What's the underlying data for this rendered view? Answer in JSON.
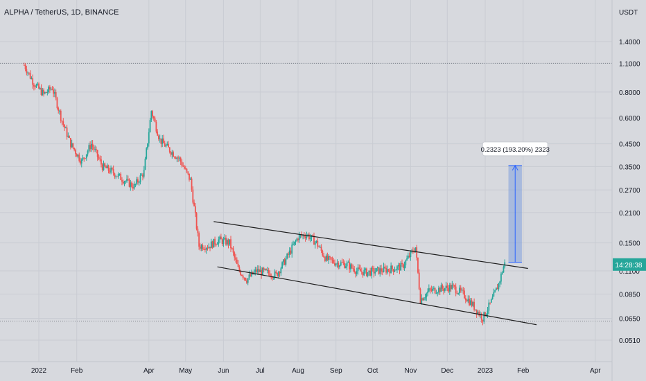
{
  "header": {
    "symbol_title": "ALPHA / TetherUS, 1D, BINANCE",
    "currency": "USDT"
  },
  "colors": {
    "up": "#26a69a",
    "down": "#ef5350",
    "background": "#d7d9de",
    "price_badge": "#26a69a",
    "measure_fill": "#6f95dc",
    "measure_line": "#2962ff"
  },
  "price_badge": {
    "value": "0.1180",
    "label": "14:28:38"
  },
  "measure_label": "0.2323 (193.20%) 2323",
  "chart_data": {
    "type": "candlestick",
    "title": "ALPHA / TetherUS, 1D, BINANCE",
    "y_scale": "log",
    "y_unit": "USDT",
    "y_ticks": [
      "1.4000",
      "1.1000",
      "0.8000",
      "0.6000",
      "0.4500",
      "0.3500",
      "0.2700",
      "0.2100",
      "0.1500",
      "0.1100",
      "0.0850",
      "0.0650",
      "0.0510"
    ],
    "x_ticks": [
      "2022",
      "Feb",
      "Apr",
      "May",
      "Jun",
      "Jul",
      "Aug",
      "Sep",
      "Oct",
      "Nov",
      "Dec",
      "2023",
      "Feb",
      "Apr"
    ],
    "horizontal_lines": [
      1.1,
      0.063
    ],
    "price_series": [
      [
        "2021-12-20",
        1.08
      ],
      [
        "2021-12-28",
        0.88
      ],
      [
        "2022-01-05",
        0.78
      ],
      [
        "2022-01-12",
        0.84
      ],
      [
        "2022-01-20",
        0.58
      ],
      [
        "2022-01-27",
        0.45
      ],
      [
        "2022-02-05",
        0.37
      ],
      [
        "2022-02-13",
        0.45
      ],
      [
        "2022-02-22",
        0.35
      ],
      [
        "2022-03-02",
        0.33
      ],
      [
        "2022-03-12",
        0.3
      ],
      [
        "2022-03-20",
        0.28
      ],
      [
        "2022-03-28",
        0.33
      ],
      [
        "2022-04-03",
        0.65
      ],
      [
        "2022-04-10",
        0.47
      ],
      [
        "2022-04-18",
        0.42
      ],
      [
        "2022-04-26",
        0.38
      ],
      [
        "2022-05-05",
        0.3
      ],
      [
        "2022-05-09",
        0.2
      ],
      [
        "2022-05-12",
        0.145
      ],
      [
        "2022-05-20",
        0.145
      ],
      [
        "2022-05-28",
        0.155
      ],
      [
        "2022-06-06",
        0.15
      ],
      [
        "2022-06-13",
        0.112
      ],
      [
        "2022-06-20",
        0.1
      ],
      [
        "2022-06-28",
        0.11
      ],
      [
        "2022-07-06",
        0.108
      ],
      [
        "2022-07-14",
        0.105
      ],
      [
        "2022-07-22",
        0.125
      ],
      [
        "2022-08-01",
        0.16
      ],
      [
        "2022-08-08",
        0.165
      ],
      [
        "2022-08-16",
        0.15
      ],
      [
        "2022-08-24",
        0.125
      ],
      [
        "2022-09-02",
        0.12
      ],
      [
        "2022-09-10",
        0.118
      ],
      [
        "2022-09-18",
        0.11
      ],
      [
        "2022-09-26",
        0.108
      ],
      [
        "2022-10-05",
        0.11
      ],
      [
        "2022-10-15",
        0.112
      ],
      [
        "2022-10-25",
        0.115
      ],
      [
        "2022-11-05",
        0.143
      ],
      [
        "2022-11-09",
        0.08
      ],
      [
        "2022-11-16",
        0.088
      ],
      [
        "2022-11-25",
        0.09
      ],
      [
        "2022-12-05",
        0.092
      ],
      [
        "2022-12-14",
        0.085
      ],
      [
        "2022-12-22",
        0.075
      ],
      [
        "2022-12-30",
        0.065
      ],
      [
        "2023-01-06",
        0.078
      ],
      [
        "2023-01-12",
        0.095
      ],
      [
        "2023-01-17",
        0.121
      ]
    ],
    "channel_upper": [
      [
        "2022-05-24",
        0.19
      ],
      [
        "2023-02-05",
        0.113
      ]
    ],
    "channel_lower": [
      [
        "2022-05-27",
        0.115
      ],
      [
        "2023-02-12",
        0.0605
      ]
    ],
    "measure": {
      "start_date": "2023-01-20",
      "end_date": "2023-01-31",
      "from": 0.121,
      "to": 0.354
    }
  }
}
